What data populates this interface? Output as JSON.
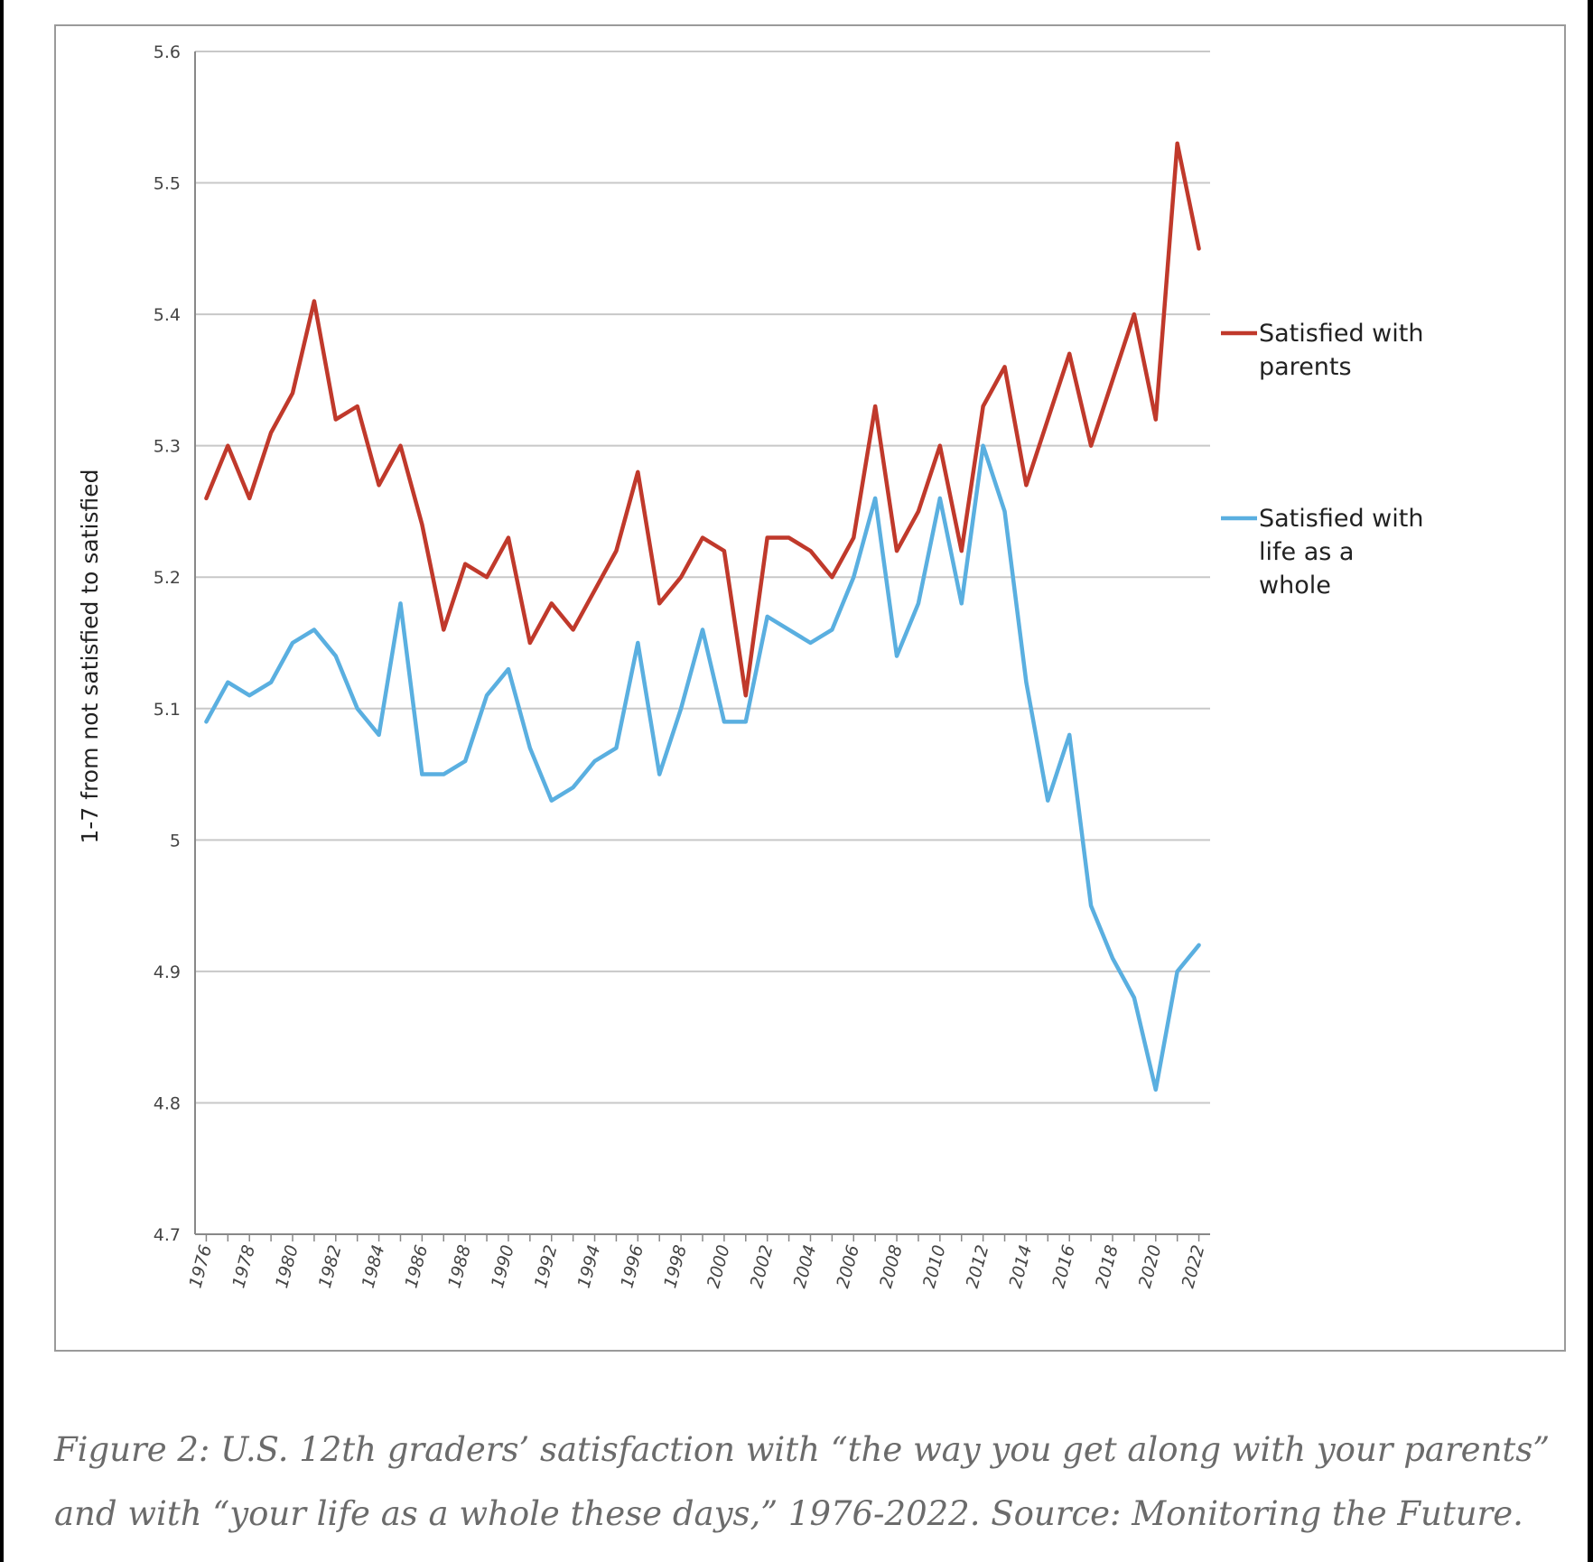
{
  "chart_data": {
    "type": "line",
    "x": [
      1976,
      1977,
      1978,
      1979,
      1980,
      1981,
      1982,
      1983,
      1984,
      1985,
      1986,
      1987,
      1988,
      1989,
      1990,
      1991,
      1992,
      1993,
      1994,
      1995,
      1996,
      1997,
      1998,
      1999,
      2000,
      2001,
      2002,
      2003,
      2004,
      2005,
      2006,
      2007,
      2008,
      2009,
      2010,
      2011,
      2012,
      2013,
      2014,
      2015,
      2016,
      2017,
      2018,
      2019,
      2020,
      2021,
      2022
    ],
    "xticks": [
      "1976",
      "1978",
      "1980",
      "1982",
      "1984",
      "1986",
      "1988",
      "1990",
      "1992",
      "1994",
      "1996",
      "1998",
      "2000",
      "2002",
      "2004",
      "2006",
      "2008",
      "2010",
      "2012",
      "2014",
      "2016",
      "2018",
      "2020",
      "2022"
    ],
    "ylabel": "1-7 from not satisfied to satisfied",
    "ylim": [
      4.7,
      5.6
    ],
    "yticks": [
      "4.7",
      "4.8",
      "4.9",
      "5",
      "5.1",
      "5.2",
      "5.3",
      "5.4",
      "5.5",
      "5.6"
    ],
    "grid": true,
    "legend_position": "right",
    "series": [
      {
        "name": "Satisfied with parents",
        "legend_lines": [
          "Satisfied with",
          "parents"
        ],
        "color": "#c0392b",
        "values": [
          5.26,
          5.3,
          5.26,
          5.31,
          5.34,
          5.41,
          5.32,
          5.33,
          5.27,
          5.3,
          5.24,
          5.16,
          5.21,
          5.2,
          5.23,
          5.15,
          5.18,
          5.16,
          5.19,
          5.22,
          5.28,
          5.18,
          5.2,
          5.23,
          5.22,
          5.11,
          5.23,
          5.23,
          5.22,
          5.2,
          5.23,
          5.33,
          5.22,
          5.25,
          5.3,
          5.22,
          5.33,
          5.36,
          5.27,
          5.32,
          5.37,
          5.3,
          5.35,
          5.4,
          5.32,
          5.53,
          5.45
        ]
      },
      {
        "name": "Satisfied with life as a whole",
        "legend_lines": [
          "Satisfied with",
          "life as a",
          "whole"
        ],
        "color": "#5aafe0",
        "values": [
          5.09,
          5.12,
          5.11,
          5.12,
          5.15,
          5.16,
          5.14,
          5.1,
          5.08,
          5.18,
          5.05,
          5.05,
          5.06,
          5.11,
          5.13,
          5.07,
          5.03,
          5.04,
          5.06,
          5.07,
          5.15,
          5.05,
          5.1,
          5.16,
          5.09,
          5.09,
          5.17,
          5.16,
          5.15,
          5.16,
          5.2,
          5.26,
          5.14,
          5.18,
          5.26,
          5.18,
          5.3,
          5.25,
          5.12,
          5.03,
          5.08,
          4.95,
          4.91,
          4.88,
          4.81,
          4.9,
          4.92
        ]
      }
    ]
  },
  "caption": "Figure 2: U.S. 12th graders’ satisfaction with “the way you get along with your parents” and with “your life as a whole these days,” 1976-2022. Source: Monitoring the Future.",
  "colors": {
    "grid": "#c8c8c8",
    "axis": "#888888",
    "frame": "#9a9a9a"
  }
}
